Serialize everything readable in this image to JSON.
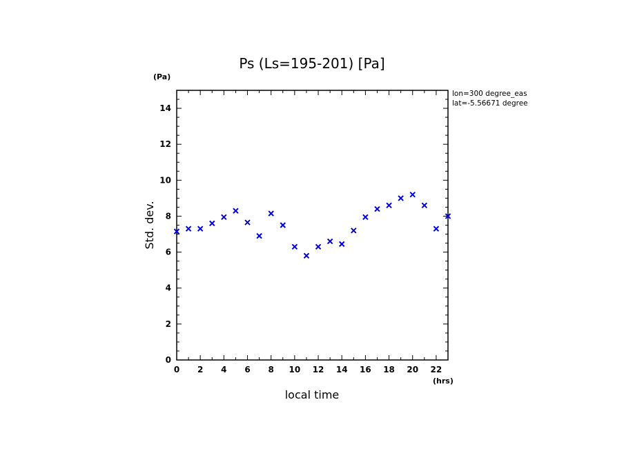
{
  "chart_data": {
    "type": "scatter",
    "title": "Ps (Ls=195-201) [Pa]",
    "xlabel": "local time",
    "ylabel": "Std. dev.",
    "x_unit": "(hrs)",
    "y_unit": "(Pa)",
    "xlim": [
      0,
      23
    ],
    "ylim": [
      0,
      15
    ],
    "x_ticks": [
      0,
      2,
      4,
      6,
      8,
      10,
      12,
      14,
      16,
      18,
      20,
      22
    ],
    "y_ticks": [
      0,
      2,
      4,
      6,
      8,
      10,
      12,
      14
    ],
    "x_tick_labels": [
      "0",
      "2",
      "4",
      "6",
      "8",
      "10",
      "12",
      "14",
      "16",
      "18",
      "20",
      "22"
    ],
    "y_tick_labels": [
      "0",
      "2",
      "4",
      "6",
      "8",
      "10",
      "12",
      "14"
    ],
    "grid": false,
    "marker": "x",
    "marker_color": "#0000dd",
    "x": [
      0,
      1,
      2,
      3,
      4,
      5,
      6,
      7,
      8,
      9,
      10,
      11,
      12,
      13,
      14,
      15,
      16,
      17,
      18,
      19,
      20,
      21,
      22,
      23
    ],
    "y": [
      7.15,
      7.3,
      7.3,
      7.6,
      7.95,
      8.3,
      7.65,
      6.9,
      8.15,
      7.5,
      6.3,
      5.8,
      6.3,
      6.6,
      6.45,
      7.2,
      7.95,
      8.4,
      8.6,
      9.0,
      9.2,
      8.6,
      7.3,
      8.0
    ],
    "annotations": [
      "lon=300 degree_eas",
      "lat=-5.56671 degree"
    ]
  }
}
